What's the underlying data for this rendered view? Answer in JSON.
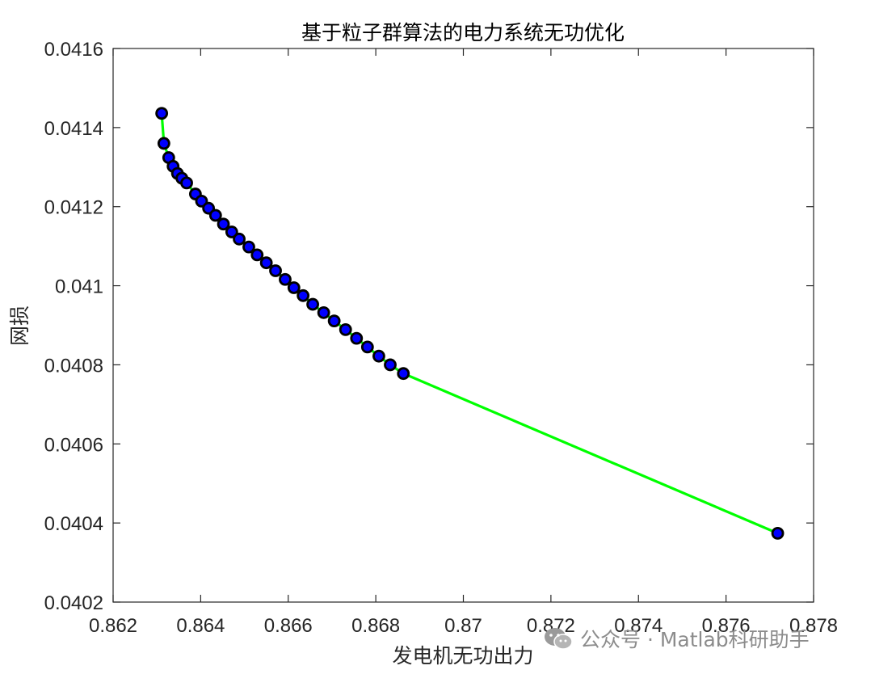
{
  "chart_data": {
    "type": "line",
    "title": "基于粒子群算法的电力系统无功优化",
    "xlabel": "发电机无功出力",
    "ylabel": "网损",
    "xlim": [
      0.862,
      0.878
    ],
    "ylim": [
      0.0402,
      0.0416
    ],
    "xticks": [
      0.862,
      0.864,
      0.866,
      0.868,
      0.87,
      0.872,
      0.874,
      0.876,
      0.878
    ],
    "xtick_labels": [
      "0.862",
      "0.864",
      "0.866",
      "0.868",
      "0.87",
      "0.872",
      "0.874",
      "0.876",
      "0.878"
    ],
    "yticks": [
      0.0402,
      0.0404,
      0.0406,
      0.0408,
      0.041,
      0.0412,
      0.0414,
      0.0416
    ],
    "ytick_labels": [
      "0.0402",
      "0.0404",
      "0.0406",
      "0.0408",
      "0.041",
      "0.0412",
      "0.0414",
      "0.0416"
    ],
    "grid": false,
    "box": true,
    "series": [
      {
        "line_color": "#00ff00",
        "marker_face_color": "#0000ff",
        "marker_edge_color": "#000000",
        "marker": "circle",
        "x": [
          0.86311,
          0.86316,
          0.86327,
          0.86337,
          0.86347,
          0.86357,
          0.86368,
          0.86388,
          0.86402,
          0.86418,
          0.86434,
          0.86452,
          0.86471,
          0.86488,
          0.8651,
          0.86529,
          0.8655,
          0.86571,
          0.86593,
          0.86613,
          0.86634,
          0.86656,
          0.86681,
          0.86705,
          0.86731,
          0.86756,
          0.86781,
          0.86807,
          0.86833,
          0.86863,
          0.87718
        ],
        "y": [
          0.041436,
          0.04136,
          0.041324,
          0.041302,
          0.041284,
          0.041272,
          0.04126,
          0.041232,
          0.041214,
          0.041196,
          0.041178,
          0.041156,
          0.041136,
          0.041118,
          0.041098,
          0.041078,
          0.041058,
          0.041038,
          0.041016,
          0.040995,
          0.040975,
          0.040953,
          0.040932,
          0.040911,
          0.040889,
          0.040867,
          0.040845,
          0.040822,
          0.0408,
          0.040778,
          0.040374
        ]
      }
    ]
  },
  "watermark": {
    "icon": "wechat-icon",
    "text": "公众号 · Matlab科研助手"
  }
}
